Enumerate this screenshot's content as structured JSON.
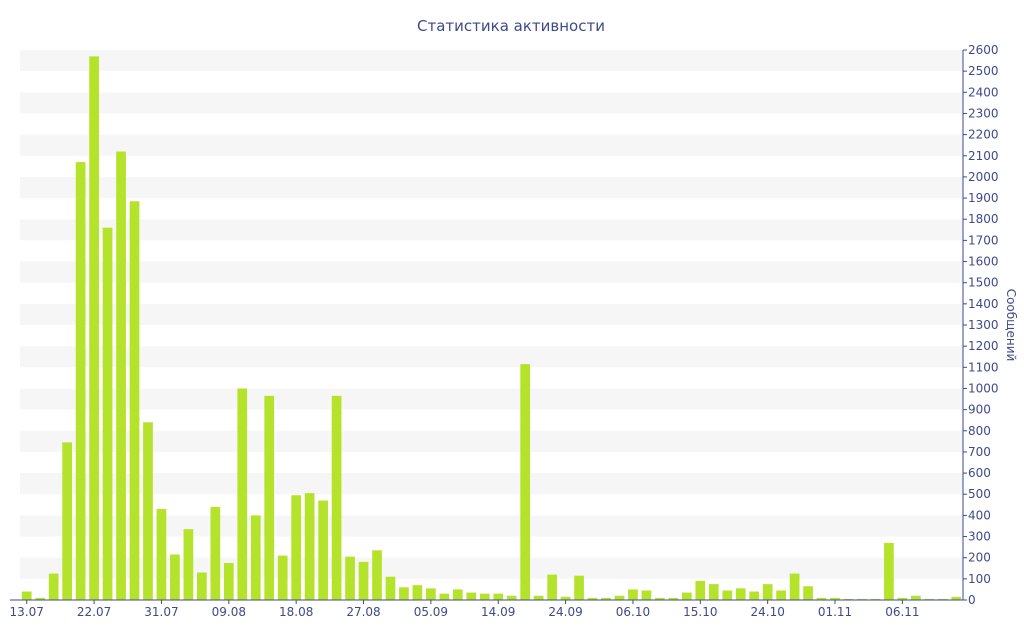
{
  "chart_data": {
    "type": "bar",
    "title": "Статистика активности",
    "ylabel": "Сообщений",
    "xlabel": "",
    "ylim": [
      0,
      2600
    ],
    "y_ticks": [
      0,
      100,
      200,
      300,
      400,
      500,
      600,
      700,
      800,
      900,
      1000,
      1100,
      1200,
      1300,
      1400,
      1500,
      1600,
      1700,
      1800,
      1900,
      2000,
      2100,
      2200,
      2300,
      2400,
      2500,
      2600
    ],
    "axis_position": "right",
    "grid": "alternating horizontal bands",
    "x_tick_labels": [
      "13.07",
      "22.07",
      "31.07",
      "09.08",
      "18.08",
      "27.08",
      "05.09",
      "14.09",
      "24.09",
      "06.10",
      "15.10",
      "24.10",
      "01.11",
      "06.11"
    ],
    "x_tick_bar_index": [
      0,
      5,
      10,
      15,
      20,
      25,
      30,
      35,
      40,
      45,
      50,
      55,
      60,
      65
    ],
    "values": [
      40,
      10,
      125,
      745,
      2070,
      2570,
      1760,
      2120,
      1885,
      840,
      430,
      215,
      335,
      130,
      440,
      175,
      1000,
      400,
      965,
      210,
      495,
      505,
      470,
      965,
      205,
      180,
      235,
      110,
      60,
      70,
      55,
      30,
      50,
      35,
      30,
      30,
      20,
      1115,
      20,
      120,
      15,
      115,
      10,
      10,
      20,
      50,
      45,
      10,
      10,
      35,
      90,
      75,
      45,
      55,
      40,
      75,
      45,
      125,
      65,
      10,
      10,
      5,
      5,
      5,
      270,
      10,
      20,
      5,
      5,
      15
    ],
    "bar_color": "#b5e22a",
    "axis_color": "#3e4a8a"
  }
}
